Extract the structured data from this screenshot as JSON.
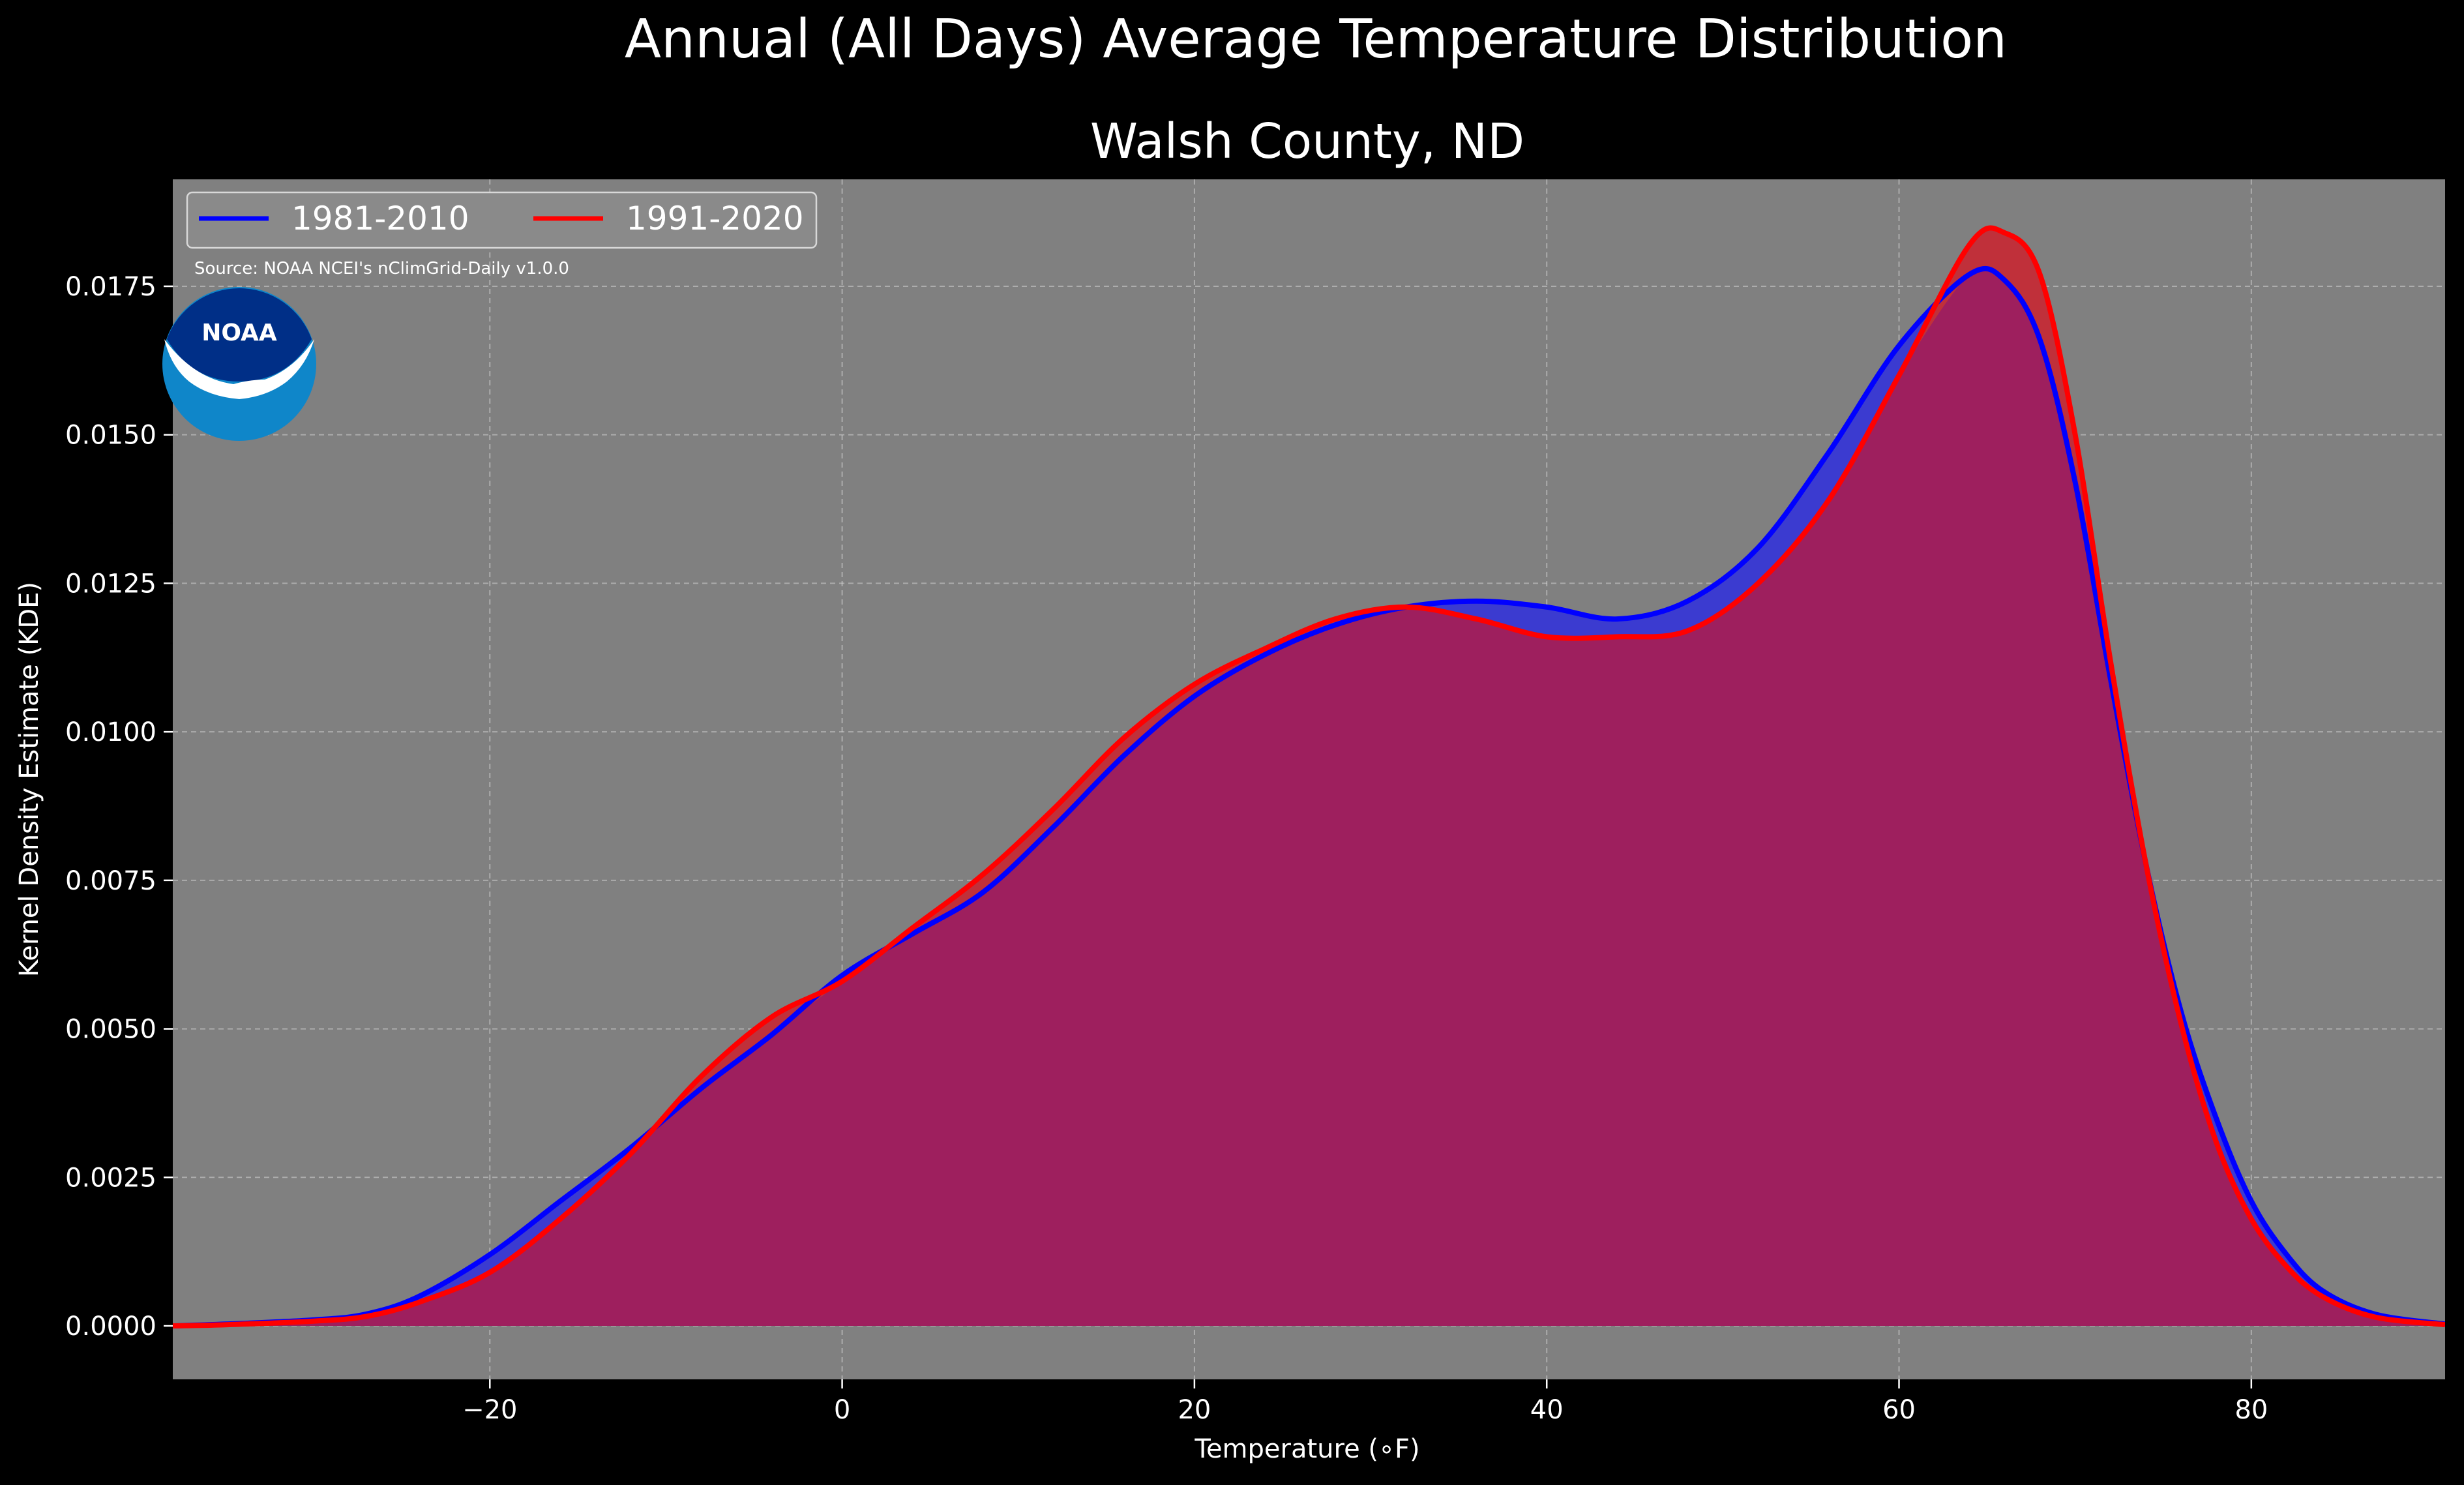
{
  "chart_data": {
    "type": "area",
    "title": "Annual (All Days) Average Temperature Distribution",
    "subtitle": "Walsh County, ND",
    "xlabel": "Temperature (∘F)",
    "ylabel": "Kernel Density Estimate (KDE)",
    "xlim": [
      -38,
      91
    ],
    "ylim": [
      -0.0009,
      0.0193
    ],
    "xticks": [
      -20,
      0,
      20,
      40,
      60,
      80
    ],
    "xtick_labels": [
      "−20",
      "0",
      "20",
      "40",
      "60",
      "80"
    ],
    "yticks": [
      0,
      0.0025,
      0.005,
      0.0075,
      0.01,
      0.0125,
      0.015,
      0.0175
    ],
    "ytick_labels": [
      "0.0000",
      "0.0025",
      "0.0050",
      "0.0075",
      "0.0100",
      "0.0125",
      "0.0150",
      "0.0175"
    ],
    "grid": true,
    "legend_position": "top-left",
    "source_note": "Source: NOAA NCEI's nClimGrid-Daily v1.0.0",
    "logo_text": "NOAA",
    "background_color": "#000000",
    "plot_background_color": "#808080",
    "series": [
      {
        "name": "1981-2010",
        "color": "#0000ff",
        "fill_color": "#3b3bd0",
        "points": [
          [
            -38,
            0
          ],
          [
            -35,
            3e-05
          ],
          [
            -30,
            0.0001
          ],
          [
            -27,
            0.0002
          ],
          [
            -24,
            0.0005
          ],
          [
            -20,
            0.0012
          ],
          [
            -16,
            0.0021
          ],
          [
            -12,
            0.003
          ],
          [
            -8,
            0.004
          ],
          [
            -4,
            0.0049
          ],
          [
            0,
            0.0059
          ],
          [
            4,
            0.0066
          ],
          [
            8,
            0.0073
          ],
          [
            12,
            0.0084
          ],
          [
            16,
            0.0096
          ],
          [
            20,
            0.0106
          ],
          [
            24,
            0.0113
          ],
          [
            28,
            0.0118
          ],
          [
            32,
            0.0121
          ],
          [
            36,
            0.0122
          ],
          [
            40,
            0.0121
          ],
          [
            44,
            0.0119
          ],
          [
            48,
            0.0122
          ],
          [
            52,
            0.0131
          ],
          [
            56,
            0.0147
          ],
          [
            60,
            0.0165
          ],
          [
            64,
            0.0177
          ],
          [
            66,
            0.0176
          ],
          [
            68,
            0.0166
          ],
          [
            70,
            0.0142
          ],
          [
            72,
            0.0109
          ],
          [
            74,
            0.0078
          ],
          [
            76,
            0.0053
          ],
          [
            78,
            0.0035
          ],
          [
            80,
            0.0021
          ],
          [
            82,
            0.0012
          ],
          [
            84,
            0.0006
          ],
          [
            87,
            0.0002
          ],
          [
            91,
            3e-05
          ]
        ]
      },
      {
        "name": "1991-2020",
        "color": "#ff0000",
        "fill_color": "#c0303a",
        "points": [
          [
            -38,
            0
          ],
          [
            -35,
            2e-05
          ],
          [
            -30,
            8e-05
          ],
          [
            -27,
            0.00016
          ],
          [
            -24,
            0.0004
          ],
          [
            -20,
            0.0009
          ],
          [
            -16,
            0.0018
          ],
          [
            -12,
            0.0029
          ],
          [
            -8,
            0.0042
          ],
          [
            -4,
            0.0052
          ],
          [
            0,
            0.0058
          ],
          [
            4,
            0.0067
          ],
          [
            8,
            0.0076
          ],
          [
            12,
            0.0087
          ],
          [
            16,
            0.0099
          ],
          [
            20,
            0.0108
          ],
          [
            24,
            0.0114
          ],
          [
            28,
            0.0119
          ],
          [
            32,
            0.0121
          ],
          [
            36,
            0.0119
          ],
          [
            40,
            0.0116
          ],
          [
            44,
            0.0116
          ],
          [
            48,
            0.0117
          ],
          [
            52,
            0.0125
          ],
          [
            56,
            0.0139
          ],
          [
            60,
            0.016
          ],
          [
            64,
            0.0182
          ],
          [
            66,
            0.0184
          ],
          [
            68,
            0.0177
          ],
          [
            70,
            0.015
          ],
          [
            72,
            0.0112
          ],
          [
            74,
            0.0078
          ],
          [
            76,
            0.0051
          ],
          [
            78,
            0.0031
          ],
          [
            80,
            0.0018
          ],
          [
            82,
            0.001
          ],
          [
            84,
            0.0005
          ],
          [
            87,
            0.00015
          ],
          [
            91,
            2e-05
          ]
        ]
      }
    ],
    "overlap_fill_color": "#9e1f5e"
  }
}
